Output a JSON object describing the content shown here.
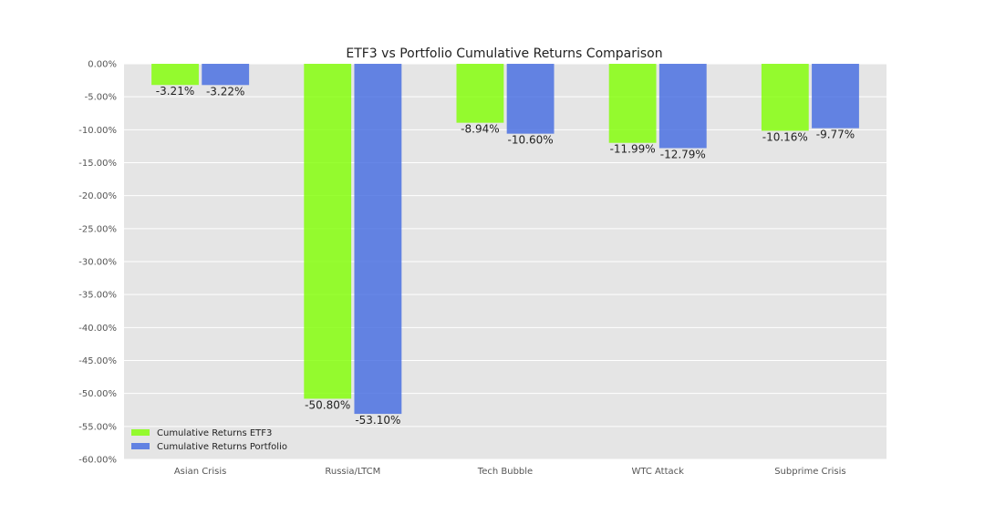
{
  "chart_data": {
    "type": "bar",
    "title": "ETF3 vs Portfolio Cumulative Returns Comparison",
    "xlabel": "",
    "ylabel": "",
    "categories": [
      "Asian Crisis",
      "Russia/LTCM",
      "Tech Bubble",
      "WTC Attack",
      "Subprime Crisis"
    ],
    "series": [
      {
        "name": "Cumulative Returns ETF3",
        "color": "#7FFF00",
        "values": [
          -3.21,
          -50.8,
          -8.94,
          -11.99,
          -10.16
        ],
        "labels": [
          "-3.21%",
          "-50.80%",
          "-8.94%",
          "-11.99%",
          "-10.16%"
        ]
      },
      {
        "name": "Cumulative Returns Portfolio",
        "color": "#4169E1",
        "values": [
          -3.22,
          -53.1,
          -10.6,
          -12.79,
          -9.77
        ],
        "labels": [
          "-3.22%",
          "-53.10%",
          "-10.60%",
          "-12.79%",
          "-9.77%"
        ]
      }
    ],
    "ylim": [
      -60,
      0
    ],
    "yticks": [
      0,
      -5,
      -10,
      -15,
      -20,
      -25,
      -30,
      -35,
      -40,
      -45,
      -50,
      -55,
      -60
    ],
    "ytick_labels": [
      "0.00%",
      "-5.00%",
      "-10.00%",
      "-15.00%",
      "-20.00%",
      "-25.00%",
      "-30.00%",
      "-35.00%",
      "-40.00%",
      "-45.00%",
      "-50.00%",
      "-55.00%",
      "-60.00%"
    ],
    "grid": true,
    "background": "#E5E5E5",
    "legend_position": "bottom-left"
  }
}
